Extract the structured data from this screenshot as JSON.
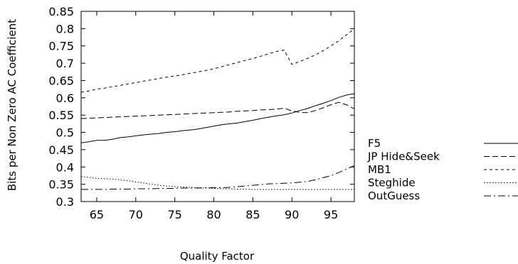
{
  "chart_data": {
    "type": "line",
    "title": "",
    "xlabel": "Quality Factor",
    "ylabel": "Bits per Non Zero AC Coefficient",
    "xlim": [
      63,
      98
    ],
    "ylim": [
      0.3,
      0.85
    ],
    "xticks": [
      65,
      70,
      75,
      80,
      85,
      90,
      95
    ],
    "yticks": [
      0.3,
      0.35,
      0.4,
      0.45,
      0.5,
      0.55,
      0.6,
      0.65,
      0.7,
      0.75,
      0.8,
      0.85
    ],
    "grid": false,
    "legend_position": "right",
    "series": [
      {
        "name": "F5",
        "dash": "solid",
        "x": [
          63,
          64,
          65,
          66,
          67,
          68,
          69,
          70,
          71,
          72,
          73,
          74,
          75,
          76,
          77,
          78,
          79,
          80,
          81,
          82,
          83,
          84,
          85,
          86,
          87,
          88,
          89,
          90,
          91,
          92,
          93,
          94,
          95,
          96,
          97,
          98
        ],
        "y": [
          0.47,
          0.473,
          0.477,
          0.477,
          0.48,
          0.485,
          0.487,
          0.49,
          0.493,
          0.495,
          0.497,
          0.5,
          0.502,
          0.505,
          0.507,
          0.51,
          0.514,
          0.518,
          0.522,
          0.525,
          0.527,
          0.531,
          0.535,
          0.54,
          0.544,
          0.548,
          0.551,
          0.556,
          0.563,
          0.569,
          0.577,
          0.584,
          0.592,
          0.601,
          0.608,
          0.612
        ]
      },
      {
        "name": "JP Hide&Seek",
        "dash": "long",
        "x": [
          63,
          64,
          65,
          66,
          67,
          68,
          69,
          70,
          71,
          72,
          73,
          74,
          75,
          76,
          77,
          78,
          79,
          80,
          81,
          82,
          83,
          84,
          85,
          86,
          87,
          88,
          89,
          90,
          91,
          92,
          93,
          94,
          95,
          96,
          97,
          98
        ],
        "y": [
          0.54,
          0.541,
          0.542,
          0.543,
          0.544,
          0.545,
          0.546,
          0.547,
          0.548,
          0.549,
          0.55,
          0.551,
          0.552,
          0.553,
          0.554,
          0.555,
          0.556,
          0.557,
          0.558,
          0.559,
          0.561,
          0.562,
          0.563,
          0.565,
          0.566,
          0.567,
          0.57,
          0.562,
          0.558,
          0.557,
          0.563,
          0.571,
          0.58,
          0.587,
          0.58,
          0.568
        ]
      },
      {
        "name": "MB1",
        "dash": "short",
        "x": [
          63,
          64,
          65,
          66,
          67,
          68,
          69,
          70,
          71,
          72,
          73,
          74,
          75,
          76,
          77,
          78,
          79,
          80,
          81,
          82,
          83,
          84,
          85,
          86,
          87,
          88,
          89,
          90,
          91,
          92,
          93,
          94,
          95,
          96,
          97,
          98
        ],
        "y": [
          0.616,
          0.62,
          0.625,
          0.628,
          0.632,
          0.636,
          0.64,
          0.644,
          0.648,
          0.652,
          0.656,
          0.66,
          0.663,
          0.667,
          0.671,
          0.675,
          0.679,
          0.684,
          0.69,
          0.696,
          0.702,
          0.708,
          0.714,
          0.72,
          0.727,
          0.734,
          0.738,
          0.697,
          0.705,
          0.714,
          0.724,
          0.736,
          0.75,
          0.765,
          0.782,
          0.8
        ]
      },
      {
        "name": "Steghide",
        "dash": "dotted",
        "x": [
          63,
          64,
          65,
          66,
          67,
          68,
          69,
          70,
          71,
          72,
          73,
          74,
          75,
          76,
          77,
          78,
          79,
          80,
          81,
          82,
          83,
          84,
          85,
          86,
          87,
          88,
          89,
          90,
          91,
          92,
          93,
          94,
          95,
          96,
          97,
          98
        ],
        "y": [
          0.372,
          0.37,
          0.367,
          0.366,
          0.365,
          0.363,
          0.36,
          0.357,
          0.354,
          0.35,
          0.347,
          0.345,
          0.343,
          0.342,
          0.341,
          0.34,
          0.339,
          0.338,
          0.337,
          0.337,
          0.336,
          0.336,
          0.335,
          0.335,
          0.335,
          0.335,
          0.335,
          0.335,
          0.335,
          0.335,
          0.335,
          0.335,
          0.335,
          0.335,
          0.335,
          0.335
        ]
      },
      {
        "name": "OutGuess",
        "dash": "dashdot",
        "x": [
          63,
          64,
          65,
          66,
          67,
          68,
          69,
          70,
          71,
          72,
          73,
          74,
          75,
          76,
          77,
          78,
          79,
          80,
          81,
          82,
          83,
          84,
          85,
          86,
          87,
          88,
          89,
          90,
          91,
          92,
          93,
          94,
          95,
          96,
          97,
          98
        ],
        "y": [
          0.335,
          0.335,
          0.335,
          0.335,
          0.336,
          0.336,
          0.336,
          0.337,
          0.337,
          0.337,
          0.338,
          0.338,
          0.338,
          0.339,
          0.339,
          0.339,
          0.34,
          0.34,
          0.34,
          0.341,
          0.343,
          0.345,
          0.347,
          0.349,
          0.351,
          0.352,
          0.353,
          0.354,
          0.356,
          0.358,
          0.363,
          0.369,
          0.375,
          0.384,
          0.394,
          0.404
        ]
      }
    ]
  }
}
